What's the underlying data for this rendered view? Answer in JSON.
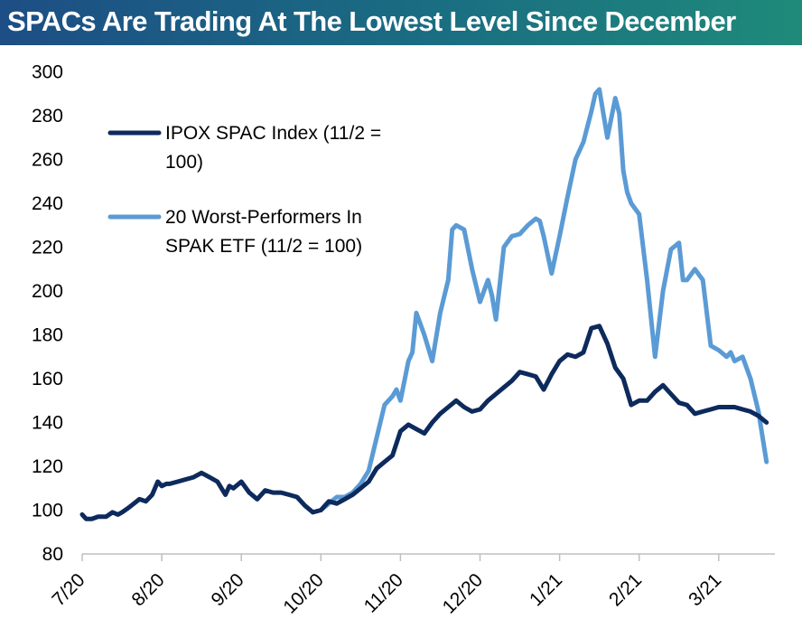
{
  "header": {
    "title": "SPACs Are Trading At The Lowest Level Since December"
  },
  "colors": {
    "title_bg_start": "#1d4e85",
    "title_bg_end": "#1f8a7a",
    "spac_index": "#0d2a5c",
    "worst_20": "#5b9bd5"
  },
  "chart_data": {
    "type": "line",
    "title": "SPACs Are Trading At The Lowest Level Since December",
    "xlabel": "",
    "ylabel": "",
    "ylim": [
      80,
      300
    ],
    "yticks": [
      80,
      100,
      120,
      140,
      160,
      180,
      200,
      220,
      240,
      260,
      280,
      300
    ],
    "xtick_labels": [
      "7/20",
      "8/20",
      "9/20",
      "10/20",
      "11/20",
      "12/20",
      "1/21",
      "2/21",
      "3/21"
    ],
    "grid": false,
    "legend_placement": "top-left",
    "legend": [
      {
        "lines": [
          "IPOX SPAC Index (11/2 =",
          "100)"
        ]
      },
      {
        "lines": [
          "20 Worst-Performers In",
          "SPAK ETF (11/2 = 100)"
        ]
      }
    ],
    "series": [
      {
        "name": "IPOX SPAC Index (11/2 = 100)",
        "x": [
          0.0,
          0.05,
          0.12,
          0.2,
          0.3,
          0.38,
          0.45,
          0.5,
          0.58,
          0.65,
          0.72,
          0.8,
          0.88,
          0.95,
          1.0,
          1.06,
          1.1,
          1.2,
          1.3,
          1.4,
          1.5,
          1.55,
          1.6,
          1.7,
          1.8,
          1.85,
          1.9,
          2.0,
          2.1,
          2.2,
          2.3,
          2.4,
          2.5,
          2.6,
          2.7,
          2.8,
          2.9,
          3.0,
          3.1,
          3.2,
          3.3,
          3.4,
          3.5,
          3.6,
          3.7,
          3.8,
          3.9,
          4.0,
          4.1,
          4.2,
          4.3,
          4.4,
          4.5,
          4.6,
          4.7,
          4.8,
          4.9,
          5.0,
          5.1,
          5.2,
          5.3,
          5.4,
          5.5,
          5.6,
          5.7,
          5.8,
          5.9,
          6.0,
          6.1,
          6.2,
          6.3,
          6.4,
          6.5,
          6.6,
          6.7,
          6.8,
          6.9,
          7.0,
          7.1,
          7.2,
          7.3,
          7.4,
          7.5,
          7.6,
          7.7,
          7.8,
          7.9,
          8.0,
          8.1,
          8.2,
          8.3,
          8.4,
          8.5,
          8.6
        ],
        "values": [
          98,
          96,
          96,
          97,
          97,
          99,
          98,
          99,
          101,
          103,
          105,
          104,
          107,
          113,
          111,
          112,
          112,
          113,
          114,
          115,
          117,
          116,
          115,
          113,
          107,
          111,
          110,
          113,
          108,
          105,
          109,
          108,
          108,
          107,
          106,
          102,
          99,
          100,
          104,
          103,
          105,
          107,
          110,
          113,
          119,
          122,
          125,
          136,
          139,
          137,
          135,
          140,
          144,
          147,
          150,
          147,
          145,
          146,
          150,
          153,
          156,
          159,
          163,
          162,
          161,
          155,
          162,
          168,
          171,
          170,
          172,
          183,
          184,
          176,
          165,
          160,
          148,
          150,
          150,
          154,
          157,
          153,
          149,
          148,
          144,
          145,
          146,
          147,
          147,
          147,
          146,
          145,
          143,
          140
        ]
      },
      {
        "name": "20 Worst-Performers In SPAK ETF (11/2 = 100)",
        "x": [
          3.0,
          3.1,
          3.2,
          3.3,
          3.4,
          3.5,
          3.6,
          3.7,
          3.8,
          3.9,
          3.95,
          4.0,
          4.1,
          4.15,
          4.2,
          4.3,
          4.4,
          4.5,
          4.6,
          4.65,
          4.7,
          4.8,
          4.9,
          5.0,
          5.1,
          5.15,
          5.2,
          5.3,
          5.4,
          5.5,
          5.6,
          5.7,
          5.75,
          5.8,
          5.9,
          6.0,
          6.1,
          6.2,
          6.3,
          6.4,
          6.45,
          6.5,
          6.6,
          6.7,
          6.75,
          6.8,
          6.85,
          6.9,
          7.0,
          7.1,
          7.2,
          7.3,
          7.4,
          7.5,
          7.55,
          7.6,
          7.7,
          7.8,
          7.9,
          8.0,
          8.1,
          8.15,
          8.2,
          8.3,
          8.4,
          8.5,
          8.6
        ],
        "values": [
          100,
          103,
          106,
          106,
          108,
          112,
          118,
          133,
          148,
          152,
          155,
          150,
          168,
          172,
          190,
          180,
          168,
          190,
          205,
          228,
          230,
          228,
          210,
          195,
          205,
          198,
          187,
          220,
          225,
          226,
          230,
          233,
          232,
          225,
          208,
          225,
          243,
          260,
          268,
          282,
          290,
          292,
          270,
          288,
          281,
          255,
          245,
          240,
          235,
          205,
          170,
          200,
          219,
          222,
          205,
          205,
          210,
          205,
          175,
          173,
          170,
          172,
          168,
          170,
          160,
          145,
          122
        ]
      }
    ]
  }
}
